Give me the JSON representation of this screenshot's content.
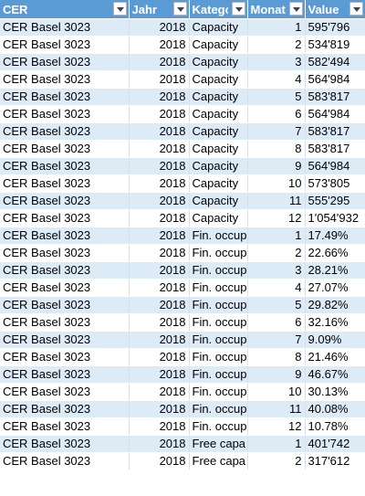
{
  "headers": [
    "CER",
    "Jahr",
    "Katego",
    "Monat",
    "Value"
  ],
  "rows": [
    [
      "CER Basel 3023",
      "2018",
      "Capacity",
      "1",
      "595'796"
    ],
    [
      "CER Basel 3023",
      "2018",
      "Capacity",
      "2",
      "534'819"
    ],
    [
      "CER Basel 3023",
      "2018",
      "Capacity",
      "3",
      "582'494"
    ],
    [
      "CER Basel 3023",
      "2018",
      "Capacity",
      "4",
      "564'984"
    ],
    [
      "CER Basel 3023",
      "2018",
      "Capacity",
      "5",
      "583'817"
    ],
    [
      "CER Basel 3023",
      "2018",
      "Capacity",
      "6",
      "564'984"
    ],
    [
      "CER Basel 3023",
      "2018",
      "Capacity",
      "7",
      "583'817"
    ],
    [
      "CER Basel 3023",
      "2018",
      "Capacity",
      "8",
      "583'817"
    ],
    [
      "CER Basel 3023",
      "2018",
      "Capacity",
      "9",
      "564'984"
    ],
    [
      "CER Basel 3023",
      "2018",
      "Capacity",
      "10",
      "573'805"
    ],
    [
      "CER Basel 3023",
      "2018",
      "Capacity",
      "11",
      "555'295"
    ],
    [
      "CER Basel 3023",
      "2018",
      "Capacity",
      "12",
      "1'054'932"
    ],
    [
      "CER Basel 3023",
      "2018",
      "Fin. occup",
      "1",
      "17.49%"
    ],
    [
      "CER Basel 3023",
      "2018",
      "Fin. occup",
      "2",
      "22.66%"
    ],
    [
      "CER Basel 3023",
      "2018",
      "Fin. occup",
      "3",
      "28.21%"
    ],
    [
      "CER Basel 3023",
      "2018",
      "Fin. occup",
      "4",
      "27.07%"
    ],
    [
      "CER Basel 3023",
      "2018",
      "Fin. occup",
      "5",
      "29.82%"
    ],
    [
      "CER Basel 3023",
      "2018",
      "Fin. occup",
      "6",
      "32.16%"
    ],
    [
      "CER Basel 3023",
      "2018",
      "Fin. occup",
      "7",
      "9.09%"
    ],
    [
      "CER Basel 3023",
      "2018",
      "Fin. occup",
      "8",
      "21.46%"
    ],
    [
      "CER Basel 3023",
      "2018",
      "Fin. occup",
      "9",
      "46.67%"
    ],
    [
      "CER Basel 3023",
      "2018",
      "Fin. occup",
      "10",
      "30.13%"
    ],
    [
      "CER Basel 3023",
      "2018",
      "Fin. occup",
      "11",
      "40.08%"
    ],
    [
      "CER Basel 3023",
      "2018",
      "Fin. occup",
      "12",
      "10.78%"
    ],
    [
      "CER Basel 3023",
      "2018",
      "Free capa",
      "1",
      "401'742"
    ],
    [
      "CER Basel 3023",
      "2018",
      "Free capa",
      "2",
      "317'612"
    ]
  ],
  "colors": {
    "header_bg": "#5b9bd5",
    "band": "#ddebf7",
    "header_text": "#ffffff"
  },
  "icons": {
    "filter": "filter-dropdown-icon"
  }
}
